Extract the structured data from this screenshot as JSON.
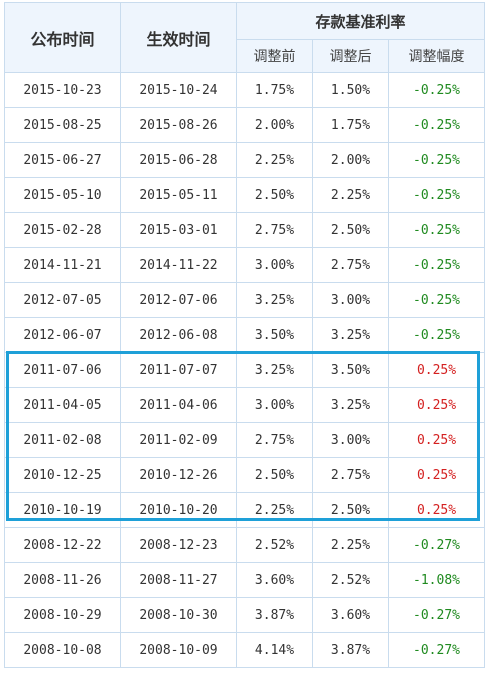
{
  "header": {
    "publish_date": "公布时间",
    "effective_date": "生效时间",
    "group_title": "存款基准利率",
    "before": "调整前",
    "after": "调整后",
    "change": "调整幅度"
  },
  "rows": [
    {
      "published": "2015-10-23",
      "effective": "2015-10-24",
      "before": "1.75%",
      "after": "1.50%",
      "change": "-0.25%",
      "direction": "down"
    },
    {
      "published": "2015-08-25",
      "effective": "2015-08-26",
      "before": "2.00%",
      "after": "1.75%",
      "change": "-0.25%",
      "direction": "down"
    },
    {
      "published": "2015-06-27",
      "effective": "2015-06-28",
      "before": "2.25%",
      "after": "2.00%",
      "change": "-0.25%",
      "direction": "down"
    },
    {
      "published": "2015-05-10",
      "effective": "2015-05-11",
      "before": "2.50%",
      "after": "2.25%",
      "change": "-0.25%",
      "direction": "down"
    },
    {
      "published": "2015-02-28",
      "effective": "2015-03-01",
      "before": "2.75%",
      "after": "2.50%",
      "change": "-0.25%",
      "direction": "down"
    },
    {
      "published": "2014-11-21",
      "effective": "2014-11-22",
      "before": "3.00%",
      "after": "2.75%",
      "change": "-0.25%",
      "direction": "down"
    },
    {
      "published": "2012-07-05",
      "effective": "2012-07-06",
      "before": "3.25%",
      "after": "3.00%",
      "change": "-0.25%",
      "direction": "down"
    },
    {
      "published": "2012-06-07",
      "effective": "2012-06-08",
      "before": "3.50%",
      "after": "3.25%",
      "change": "-0.25%",
      "direction": "down"
    },
    {
      "published": "2011-07-06",
      "effective": "2011-07-07",
      "before": "3.25%",
      "after": "3.50%",
      "change": "0.25%",
      "direction": "up"
    },
    {
      "published": "2011-04-05",
      "effective": "2011-04-06",
      "before": "3.00%",
      "after": "3.25%",
      "change": "0.25%",
      "direction": "up"
    },
    {
      "published": "2011-02-08",
      "effective": "2011-02-09",
      "before": "2.75%",
      "after": "3.00%",
      "change": "0.25%",
      "direction": "up"
    },
    {
      "published": "2010-12-25",
      "effective": "2010-12-26",
      "before": "2.50%",
      "after": "2.75%",
      "change": "0.25%",
      "direction": "up"
    },
    {
      "published": "2010-10-19",
      "effective": "2010-10-20",
      "before": "2.25%",
      "after": "2.50%",
      "change": "0.25%",
      "direction": "up"
    },
    {
      "published": "2008-12-22",
      "effective": "2008-12-23",
      "before": "2.52%",
      "after": "2.25%",
      "change": "-0.27%",
      "direction": "down"
    },
    {
      "published": "2008-11-26",
      "effective": "2008-11-27",
      "before": "3.60%",
      "after": "2.52%",
      "change": "-1.08%",
      "direction": "down"
    },
    {
      "published": "2008-10-29",
      "effective": "2008-10-30",
      "before": "3.87%",
      "after": "3.60%",
      "change": "-0.27%",
      "direction": "down"
    },
    {
      "published": "2008-10-08",
      "effective": "2008-10-09",
      "before": "4.14%",
      "after": "3.87%",
      "change": "-0.27%",
      "direction": "down"
    }
  ],
  "colors": {
    "header_bg": "#eef5fd",
    "border": "#c9dcee",
    "decrease": "#1f8a1f",
    "increase": "#d42020",
    "highlight_box": "#1ea0d8"
  }
}
